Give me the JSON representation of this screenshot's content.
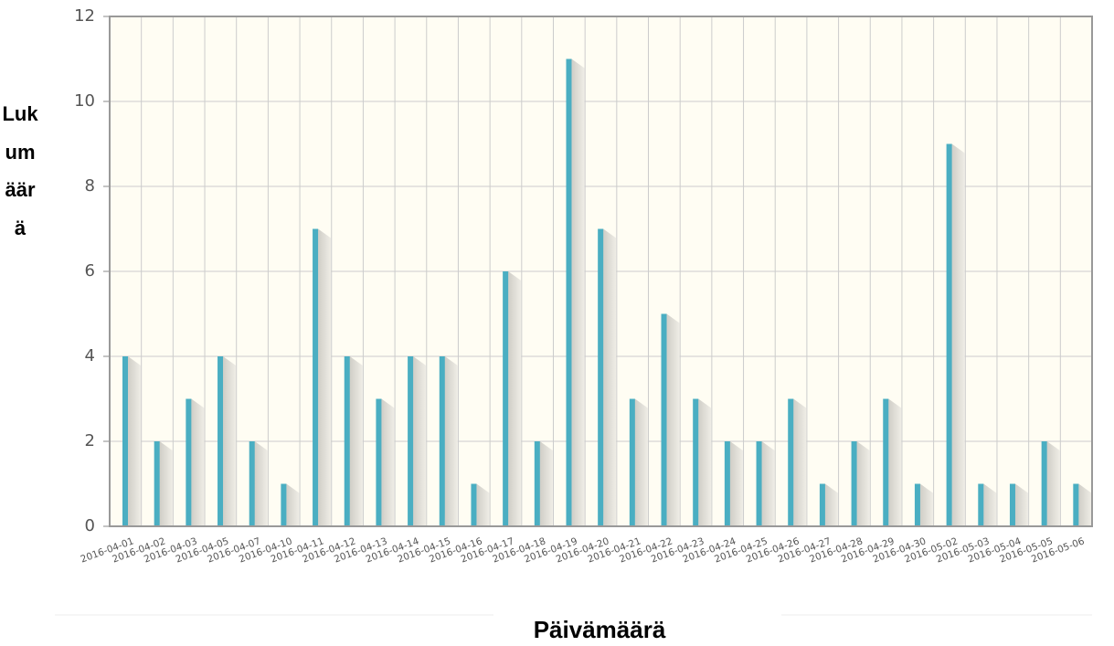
{
  "chart_data": {
    "type": "bar",
    "x_label": "Päivämäärä",
    "y_label": "Lukumäärä",
    "categories": [
      "2016-04-01",
      "2016-04-02",
      "2016-04-03",
      "2016-04-05",
      "2016-04-07",
      "2016-04-10",
      "2016-04-11",
      "2016-04-12",
      "2016-04-13",
      "2016-04-14",
      "2016-04-15",
      "2016-04-16",
      "2016-04-17",
      "2016-04-18",
      "2016-04-19",
      "2016-04-20",
      "2016-04-21",
      "2016-04-22",
      "2016-04-23",
      "2016-04-24",
      "2016-04-25",
      "2016-04-26",
      "2016-04-27",
      "2016-04-28",
      "2016-04-29",
      "2016-04-30",
      "2016-05-02",
      "2016-05-03",
      "2016-05-04",
      "2016-05-05",
      "2016-05-06"
    ],
    "values": [
      4,
      2,
      3,
      4,
      2,
      1,
      7,
      4,
      3,
      4,
      4,
      1,
      6,
      2,
      11,
      7,
      3,
      5,
      3,
      2,
      2,
      3,
      1,
      2,
      3,
      1,
      9,
      1,
      1,
      2,
      1
    ],
    "color": "#4aaec2",
    "ylim": [
      0,
      12
    ],
    "yticks": [
      0,
      2,
      4,
      6,
      8,
      10,
      12
    ],
    "grid": true
  }
}
